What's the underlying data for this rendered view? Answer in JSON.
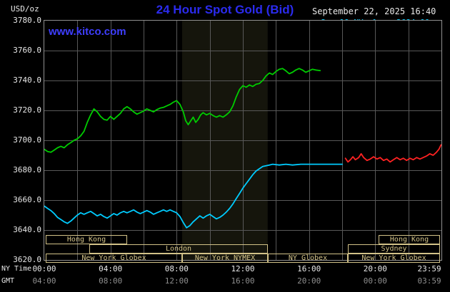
{
  "header": {
    "unit_label": "USD/oz",
    "datetime": "September 22, 2025 16:40",
    "watermark": "www.kitco.com"
  },
  "colors": {
    "title_blue": "#2b2bee",
    "watermark_blue": "#3e3eff",
    "text_white": "#e8e8e8",
    "text_gray": "#8f8f8f",
    "grid": "#585858",
    "border": "#909090",
    "band": "#15150c",
    "session": "#d2c288"
  },
  "chart_data": {
    "type": "line",
    "title": "24 Hour Spot Gold (Bid)",
    "ylabel_unit": "USD/oz",
    "xlim_hours": [
      0,
      24
    ],
    "ylim": [
      3620,
      3780
    ],
    "grid": {
      "x_step_hours": 2,
      "y_step": 20
    },
    "y_tick_labels": [
      "3780.0",
      "3760.0",
      "3740.0",
      "3720.0",
      "3700.0",
      "3680.0",
      "3660.0",
      "3640.0",
      "3620.0"
    ],
    "x_axis": {
      "ny_label": "NY Time",
      "gmt_label": "GMT",
      "tick_hours": [
        0,
        4,
        8,
        12,
        16,
        20,
        23.983
      ],
      "ny_ticks": [
        "00:00",
        "04:00",
        "08:00",
        "12:00",
        "16:00",
        "20:00",
        "23:59"
      ],
      "gmt_ticks": [
        "04:00",
        "08:00",
        "12:00",
        "16:00",
        "20:00",
        "00:00",
        "03:59"
      ]
    },
    "highlight_band": {
      "start_hour": 8.33,
      "end_hour": 13.5,
      "label": "New York NYMEX floor session"
    },
    "legend": [
      {
        "label": "Sep 19 NY close 3684.00",
        "color": "#00ccff"
      },
      {
        "label": "Sep 21 Sunday",
        "color": "#ff2222"
      },
      {
        "label": "Sep 22 Last 3746.60",
        "color": "#00cc00"
      }
    ],
    "series": [
      {
        "id": "sep19-ny-close",
        "name": "Sep 19 NY close 3684.00",
        "color": "#00ccff",
        "points": [
          [
            0,
            3656
          ],
          [
            0.2,
            3654.5
          ],
          [
            0.4,
            3653
          ],
          [
            0.6,
            3651
          ],
          [
            0.8,
            3648.5
          ],
          [
            1,
            3647
          ],
          [
            1.2,
            3645.5
          ],
          [
            1.4,
            3644.5
          ],
          [
            1.6,
            3646
          ],
          [
            1.8,
            3648
          ],
          [
            2,
            3650
          ],
          [
            2.2,
            3651.5
          ],
          [
            2.4,
            3650.5
          ],
          [
            2.6,
            3651.5
          ],
          [
            2.8,
            3652.5
          ],
          [
            3,
            3651
          ],
          [
            3.2,
            3649.5
          ],
          [
            3.4,
            3650.5
          ],
          [
            3.6,
            3649
          ],
          [
            3.8,
            3648
          ],
          [
            4,
            3649.5
          ],
          [
            4.2,
            3651
          ],
          [
            4.4,
            3650
          ],
          [
            4.6,
            3651.5
          ],
          [
            4.8,
            3652.5
          ],
          [
            5,
            3651.5
          ],
          [
            5.2,
            3652.5
          ],
          [
            5.4,
            3653.5
          ],
          [
            5.6,
            3652
          ],
          [
            5.8,
            3651
          ],
          [
            6,
            3652
          ],
          [
            6.2,
            3653
          ],
          [
            6.4,
            3652
          ],
          [
            6.6,
            3650.5
          ],
          [
            6.8,
            3651.5
          ],
          [
            7,
            3652.5
          ],
          [
            7.2,
            3653.5
          ],
          [
            7.4,
            3652.5
          ],
          [
            7.6,
            3653.5
          ],
          [
            7.8,
            3652.5
          ],
          [
            8,
            3651.5
          ],
          [
            8.2,
            3649
          ],
          [
            8.4,
            3645
          ],
          [
            8.6,
            3641.5
          ],
          [
            8.8,
            3643
          ],
          [
            9,
            3645.5
          ],
          [
            9.2,
            3647.5
          ],
          [
            9.4,
            3649.5
          ],
          [
            9.6,
            3648
          ],
          [
            9.8,
            3649.5
          ],
          [
            10,
            3650.5
          ],
          [
            10.2,
            3649
          ],
          [
            10.4,
            3647.5
          ],
          [
            10.6,
            3648.5
          ],
          [
            10.8,
            3650
          ],
          [
            11,
            3652
          ],
          [
            11.2,
            3654.5
          ],
          [
            11.4,
            3657.5
          ],
          [
            11.6,
            3661
          ],
          [
            11.8,
            3664.5
          ],
          [
            12,
            3668
          ],
          [
            12.2,
            3671
          ],
          [
            12.4,
            3674
          ],
          [
            12.6,
            3677
          ],
          [
            12.8,
            3679.5
          ],
          [
            13,
            3681
          ],
          [
            13.2,
            3682.5
          ],
          [
            13.4,
            3683
          ],
          [
            13.6,
            3683.5
          ],
          [
            13.8,
            3684
          ],
          [
            14.2,
            3683.5
          ],
          [
            14.6,
            3684
          ],
          [
            15,
            3683.5
          ],
          [
            15.5,
            3684
          ],
          [
            16,
            3684
          ],
          [
            16.5,
            3684
          ],
          [
            17,
            3684
          ],
          [
            17.5,
            3684
          ],
          [
            18,
            3684
          ]
        ]
      },
      {
        "id": "sep21-sunday",
        "name": "Sep 21 Sunday",
        "color": "#ff2222",
        "points": [
          [
            18.2,
            3688
          ],
          [
            18.35,
            3685.5
          ],
          [
            18.5,
            3687
          ],
          [
            18.65,
            3689
          ],
          [
            18.8,
            3687
          ],
          [
            19,
            3688.5
          ],
          [
            19.15,
            3691
          ],
          [
            19.3,
            3688.5
          ],
          [
            19.5,
            3686.5
          ],
          [
            19.7,
            3687.5
          ],
          [
            19.9,
            3689
          ],
          [
            20.1,
            3687.5
          ],
          [
            20.3,
            3688.5
          ],
          [
            20.5,
            3686.5
          ],
          [
            20.7,
            3687.5
          ],
          [
            20.9,
            3685.5
          ],
          [
            21.1,
            3687
          ],
          [
            21.3,
            3688.5
          ],
          [
            21.5,
            3687
          ],
          [
            21.7,
            3688
          ],
          [
            21.9,
            3686.5
          ],
          [
            22.1,
            3688
          ],
          [
            22.3,
            3687
          ],
          [
            22.5,
            3688.5
          ],
          [
            22.7,
            3687.5
          ],
          [
            22.9,
            3688.5
          ],
          [
            23.1,
            3689.5
          ],
          [
            23.3,
            3691
          ],
          [
            23.5,
            3690
          ],
          [
            23.7,
            3692
          ],
          [
            23.85,
            3694
          ],
          [
            23.98,
            3697
          ]
        ]
      },
      {
        "id": "sep22-last",
        "name": "Sep 22 Last 3746.60",
        "color": "#00cc00",
        "points": [
          [
            0,
            3694
          ],
          [
            0.2,
            3692.5
          ],
          [
            0.4,
            3692
          ],
          [
            0.6,
            3693.5
          ],
          [
            0.8,
            3695
          ],
          [
            1,
            3696
          ],
          [
            1.2,
            3695
          ],
          [
            1.4,
            3697
          ],
          [
            1.6,
            3698.5
          ],
          [
            1.8,
            3700
          ],
          [
            2,
            3701
          ],
          [
            2.2,
            3703
          ],
          [
            2.4,
            3706
          ],
          [
            2.6,
            3712
          ],
          [
            2.8,
            3717
          ],
          [
            3,
            3721
          ],
          [
            3.2,
            3719
          ],
          [
            3.4,
            3716
          ],
          [
            3.6,
            3714
          ],
          [
            3.8,
            3713.5
          ],
          [
            4,
            3716
          ],
          [
            4.2,
            3714
          ],
          [
            4.4,
            3716
          ],
          [
            4.6,
            3718
          ],
          [
            4.8,
            3721
          ],
          [
            5,
            3722.5
          ],
          [
            5.2,
            3721
          ],
          [
            5.4,
            3719
          ],
          [
            5.6,
            3717.5
          ],
          [
            5.8,
            3718.5
          ],
          [
            6,
            3719.5
          ],
          [
            6.2,
            3721
          ],
          [
            6.4,
            3720
          ],
          [
            6.6,
            3719
          ],
          [
            6.8,
            3720.5
          ],
          [
            7,
            3721.5
          ],
          [
            7.2,
            3722
          ],
          [
            7.4,
            3723
          ],
          [
            7.6,
            3724
          ],
          [
            7.8,
            3725.5
          ],
          [
            8,
            3726.5
          ],
          [
            8.2,
            3724
          ],
          [
            8.4,
            3719
          ],
          [
            8.55,
            3713
          ],
          [
            8.7,
            3710.5
          ],
          [
            8.85,
            3713
          ],
          [
            9,
            3715.5
          ],
          [
            9.15,
            3712
          ],
          [
            9.3,
            3714
          ],
          [
            9.45,
            3717
          ],
          [
            9.6,
            3718.5
          ],
          [
            9.8,
            3717
          ],
          [
            10,
            3718
          ],
          [
            10.2,
            3716.5
          ],
          [
            10.4,
            3715.5
          ],
          [
            10.6,
            3716.5
          ],
          [
            10.8,
            3715.5
          ],
          [
            11,
            3717
          ],
          [
            11.2,
            3719
          ],
          [
            11.4,
            3723
          ],
          [
            11.6,
            3729
          ],
          [
            11.8,
            3734
          ],
          [
            12,
            3736.5
          ],
          [
            12.2,
            3735.5
          ],
          [
            12.4,
            3737
          ],
          [
            12.6,
            3736
          ],
          [
            12.8,
            3737.5
          ],
          [
            13,
            3738
          ],
          [
            13.2,
            3740
          ],
          [
            13.4,
            3743
          ],
          [
            13.6,
            3745
          ],
          [
            13.8,
            3744
          ],
          [
            14,
            3746
          ],
          [
            14.2,
            3747.5
          ],
          [
            14.4,
            3748
          ],
          [
            14.6,
            3746.5
          ],
          [
            14.8,
            3744.5
          ],
          [
            15,
            3745.5
          ],
          [
            15.2,
            3747
          ],
          [
            15.4,
            3748
          ],
          [
            15.6,
            3747
          ],
          [
            15.8,
            3745.5
          ],
          [
            16,
            3746.5
          ],
          [
            16.2,
            3747.5
          ],
          [
            16.4,
            3747
          ],
          [
            16.67,
            3746.6
          ]
        ]
      }
    ],
    "sessions": [
      {
        "row": 0,
        "start": 0.1,
        "end": 5,
        "label": "Hong Kong"
      },
      {
        "row": 0,
        "start": 20.2,
        "end": 23.92,
        "label": "Hong Kong"
      },
      {
        "row": 1,
        "start": 2.7,
        "end": 13.5,
        "label": "London"
      },
      {
        "row": 1,
        "start": 18.35,
        "end": 23.92,
        "label": "Sydney"
      },
      {
        "row": 2,
        "start": 0.1,
        "end": 8.33,
        "label": "New York Globex"
      },
      {
        "row": 2,
        "start": 8.33,
        "end": 13.5,
        "label": "New York NYMEX"
      },
      {
        "row": 2,
        "start": 13.5,
        "end": 18.35,
        "label": "NY Globex"
      },
      {
        "row": 2,
        "start": 18.35,
        "end": 23.92,
        "label": "New York Globex"
      }
    ]
  }
}
